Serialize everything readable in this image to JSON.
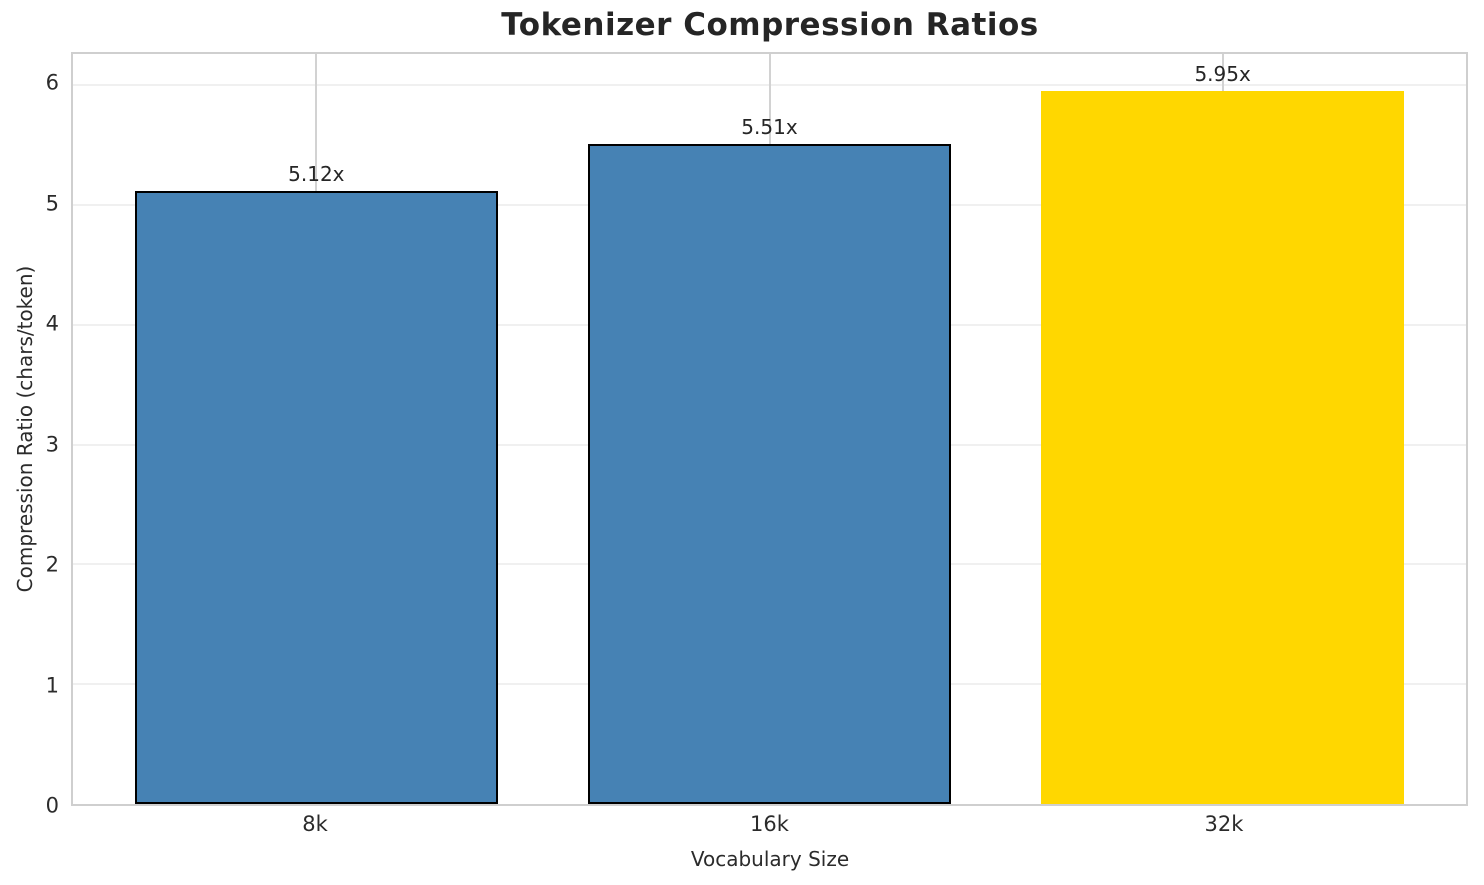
{
  "chart_data": {
    "type": "bar",
    "title": "Tokenizer Compression Ratios",
    "xlabel": "Vocabulary Size",
    "ylabel": "Compression Ratio (chars/token)",
    "categories": [
      "8k",
      "16k",
      "32k"
    ],
    "values": [
      5.12,
      5.51,
      5.95
    ],
    "value_labels": [
      "5.12x",
      "5.51x",
      "5.95x"
    ],
    "yticks": [
      0,
      1,
      2,
      3,
      4,
      5,
      6
    ],
    "ylim": [
      0,
      6.26
    ],
    "grid": "both",
    "legend": "none",
    "bar_colors": [
      "#4682b4",
      "#4682b4",
      "#ffd700"
    ],
    "bar_edge_colors": [
      "#000000",
      "#000000",
      "#ffd700"
    ],
    "colors": {
      "grid_horizontal": "#f0f0f0",
      "grid_vertical": "#d2d2d2",
      "spine": "#cfcfcf",
      "text": "#262626",
      "background": "#ffffff"
    }
  }
}
